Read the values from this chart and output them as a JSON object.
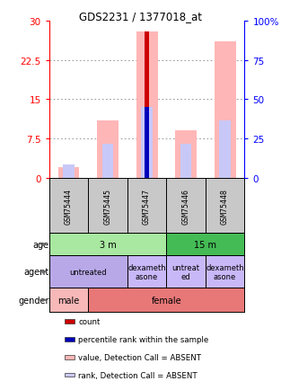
{
  "title": "GDS2231 / 1377018_at",
  "samples": [
    "GSM75444",
    "GSM75445",
    "GSM75447",
    "GSM75446",
    "GSM75448"
  ],
  "red_count": [
    0,
    0,
    28,
    0,
    0
  ],
  "blue_percentile": [
    0,
    0,
    13.5,
    0,
    0
  ],
  "pink_value": [
    2,
    11,
    28,
    9,
    26
  ],
  "lavender_rank": [
    2.5,
    6.5,
    13.5,
    6.5,
    11
  ],
  "ylim_left": [
    0,
    30
  ],
  "ylim_right": [
    0,
    100
  ],
  "yticks_left": [
    0,
    7.5,
    15,
    22.5,
    30
  ],
  "yticks_right": [
    0,
    25,
    50,
    75,
    100
  ],
  "age_groups": [
    {
      "label": "3 m",
      "span": [
        0,
        3
      ],
      "color": "#A8E8A0"
    },
    {
      "label": "15 m",
      "span": [
        3,
        5
      ],
      "color": "#44BB55"
    }
  ],
  "agent_groups": [
    {
      "label": "untreated",
      "span": [
        0,
        2
      ],
      "color": "#B8A8E8"
    },
    {
      "label": "dexameth\nasone",
      "span": [
        2,
        3
      ],
      "color": "#C8B8F8"
    },
    {
      "label": "untreat\ned",
      "span": [
        3,
        4
      ],
      "color": "#C8B8F8"
    },
    {
      "label": "dexameth\nasone",
      "span": [
        4,
        5
      ],
      "color": "#C8B8F8"
    }
  ],
  "gender_groups": [
    {
      "label": "male",
      "span": [
        0,
        1
      ],
      "color": "#F8B8B8"
    },
    {
      "label": "female",
      "span": [
        1,
        5
      ],
      "color": "#E87878"
    }
  ],
  "row_labels": [
    "age",
    "agent",
    "gender"
  ],
  "legend": [
    {
      "color": "#CC0000",
      "label": "count"
    },
    {
      "color": "#0000BB",
      "label": "percentile rank within the sample"
    },
    {
      "color": "#FFB6B6",
      "label": "value, Detection Call = ABSENT"
    },
    {
      "color": "#C8C8F8",
      "label": "rank, Detection Call = ABSENT"
    }
  ],
  "bg_color": "#FFFFFF",
  "grid_color": "#888888",
  "sample_box_color": "#C8C8C8",
  "pink_bar_width": 0.55,
  "lavender_bar_width": 0.28,
  "red_bar_width": 0.12,
  "blue_bar_width": 0.12
}
